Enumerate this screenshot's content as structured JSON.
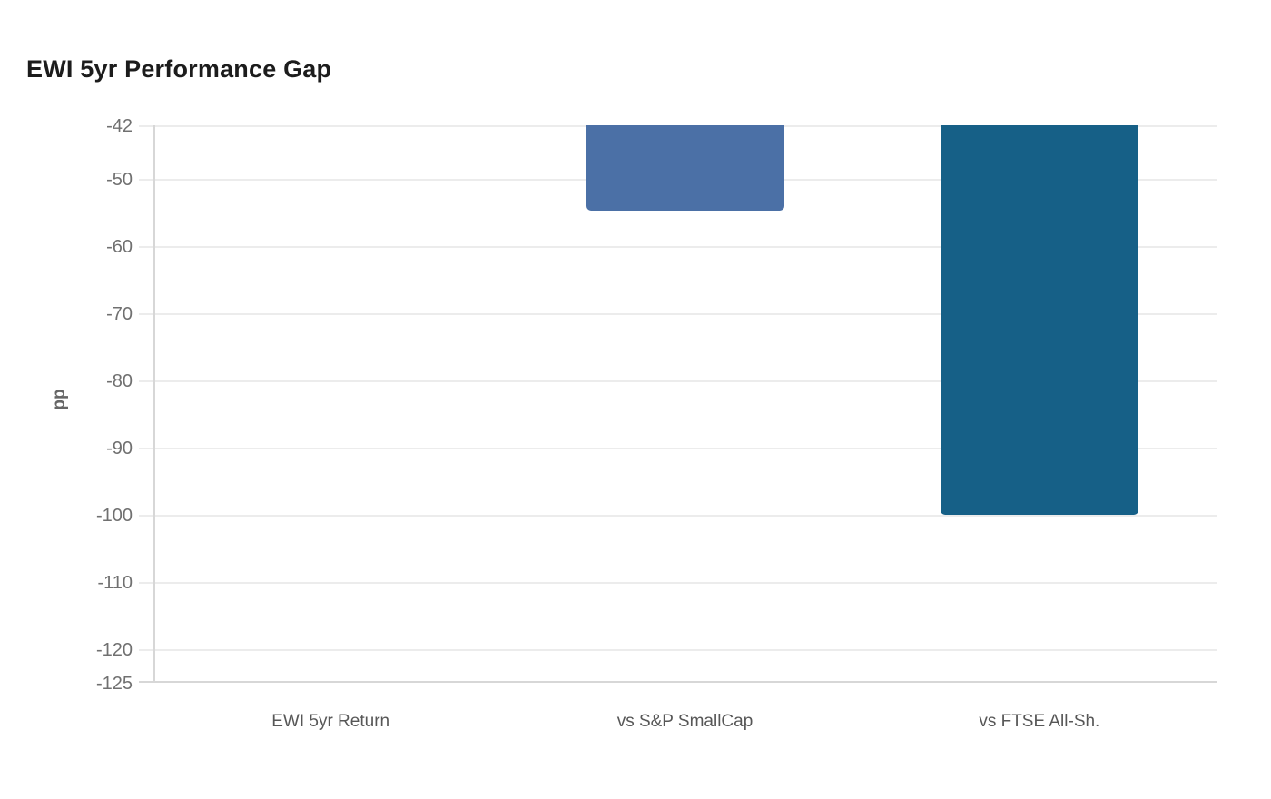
{
  "header": {
    "title": "EWI 5yr Performance Gap"
  },
  "chart_data": {
    "type": "bar",
    "title": "EWI 5yr Performance Gap",
    "categories": [
      "EWI 5yr Return",
      "vs S&P SmallCap",
      "vs FTSE All-Sh."
    ],
    "values": [
      -42,
      -54.7,
      -100
    ],
    "xlabel": "",
    "ylabel": "pp",
    "ylim": [
      -125,
      -42
    ],
    "yticks": [
      -42,
      -50,
      -60,
      -70,
      -80,
      -90,
      -100,
      -110,
      -120,
      -125
    ],
    "ytick_labels": [
      "-42",
      "-50",
      "-60",
      "-70",
      "-80",
      "-90",
      "-100",
      "-110",
      "-120",
      "-125"
    ],
    "grid": true,
    "legend": false,
    "bar_colors": [
      null,
      "#4b70a6",
      "#166087"
    ],
    "note_first_bar": "bar clipped to zero height at axis max -42"
  },
  "style_colors": {
    "gridline": "#ececec",
    "axis_line": "#d7d7d7",
    "title_text": "#1c1c1c",
    "tick_text": "#707070",
    "category_text": "#575757",
    "ylabel_text": "#666666"
  }
}
